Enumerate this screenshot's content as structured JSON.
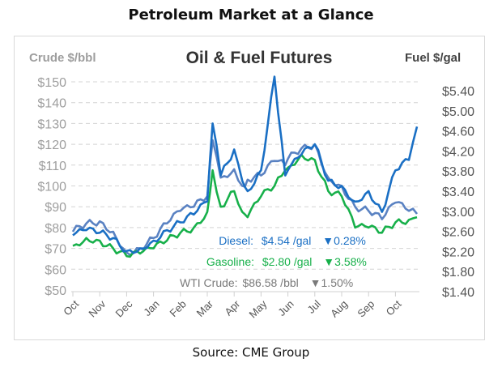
{
  "page": {
    "title": "Petroleum Market at a Glance",
    "source": "Source: CME Group"
  },
  "colors": {
    "diesel": "#1a6fc4",
    "gasoline": "#17b04a",
    "crude": "#5a82c2",
    "grid": "#d4d4d4",
    "left_axis_text": "#9e9e9e",
    "right_axis_text": "#555555"
  },
  "legend": {
    "diesel": {
      "label": "Diesel:",
      "price": "$4.54 /gal",
      "change": "▼0.28%"
    },
    "gasoline": {
      "label": "Gasoline:",
      "price": "$2.80 /gal",
      "change": "▼3.58%"
    },
    "crude": {
      "label": "WTI Crude:",
      "price": "$86.58 /bbl",
      "change": "▼1.50%"
    }
  },
  "chart_data": {
    "type": "line",
    "title": "Oil & Fuel Futures",
    "ylabel_left": "Crude $/bbl",
    "ylabel_right": "Fuel $/gal",
    "ylim_left": [
      50,
      150
    ],
    "ylim_right": [
      1.4,
      5.4
    ],
    "left_ticks": [
      "$150",
      "$140",
      "$130",
      "$120",
      "$110",
      "$100",
      "$90",
      "$80",
      "$70",
      "$60",
      "$50"
    ],
    "right_ticks": [
      "$5.40",
      "$5.00",
      "$4.60",
      "$4.20",
      "$3.80",
      "$3.40",
      "$3.00",
      "$2.60",
      "$2.20",
      "$1.80",
      "$1.40"
    ],
    "grid": true,
    "categories": [
      "Oct",
      "Nov",
      "Dec",
      "Jan",
      "Feb",
      "Mar",
      "Apr",
      "May",
      "Jun",
      "Jul",
      "Aug",
      "Sep",
      "Oct"
    ],
    "x": [
      0,
      0.5,
      1,
      1.5,
      2,
      2.5,
      3,
      3.5,
      4,
      4.5,
      5,
      5.2,
      5.5,
      6,
      6.3,
      6.5,
      7,
      7.5,
      7.9,
      8,
      8.5,
      9,
      9.5,
      10,
      10.5,
      11,
      11.5,
      12,
      12.5,
      12.8
    ],
    "series": [
      {
        "name": "Diesel",
        "axis": "right",
        "unit": "$/gal",
        "values": [
          2.45,
          2.55,
          2.5,
          2.4,
          2.15,
          2.2,
          2.35,
          2.55,
          2.7,
          2.85,
          3.1,
          4.6,
          3.6,
          4.1,
          3.5,
          3.3,
          3.7,
          5.5,
          3.6,
          3.7,
          4.0,
          4.2,
          3.5,
          3.4,
          3.1,
          3.3,
          2.9,
          3.7,
          3.9,
          4.54
        ]
      },
      {
        "name": "Gasoline",
        "axis": "right",
        "unit": "$/gal",
        "values": [
          2.25,
          2.4,
          2.35,
          2.2,
          2.05,
          2.1,
          2.2,
          2.35,
          2.5,
          2.6,
          2.9,
          3.7,
          3.0,
          3.3,
          2.9,
          2.8,
          3.2,
          3.4,
          3.7,
          3.75,
          4.0,
          3.9,
          3.3,
          3.2,
          2.6,
          2.6,
          2.5,
          2.7,
          2.75,
          2.8
        ]
      },
      {
        "name": "WTI Crude",
        "axis": "left",
        "unit": "$/bbl",
        "values": [
          78,
          82,
          83,
          78,
          68,
          70,
          75,
          82,
          88,
          90,
          95,
          122,
          104,
          108,
          100,
          103,
          105,
          112,
          110,
          113,
          118,
          120,
          104,
          100,
          90,
          88,
          84,
          92,
          88,
          86.58
        ]
      }
    ]
  }
}
